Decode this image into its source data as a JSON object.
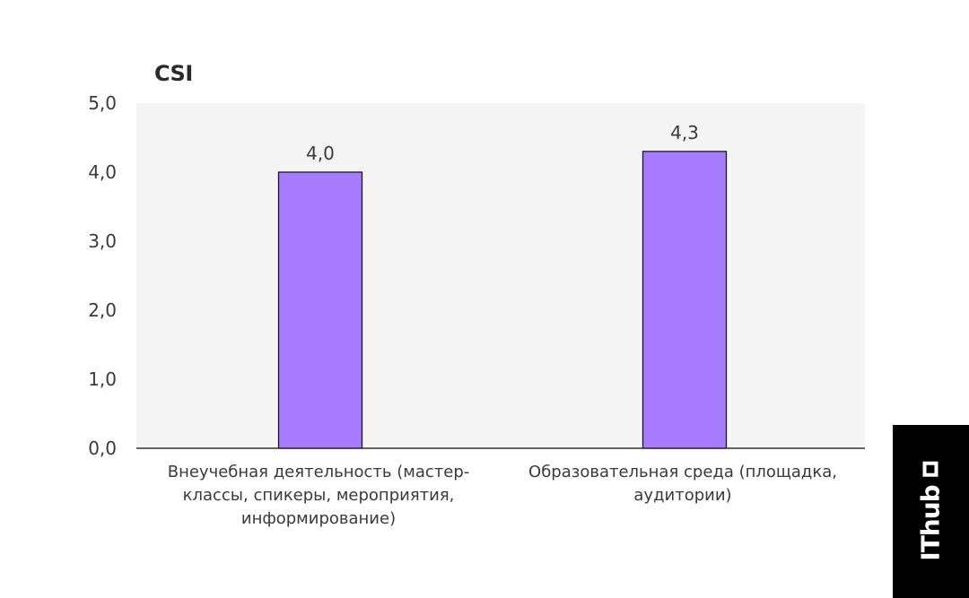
{
  "chart_data": {
    "type": "bar",
    "title": "CSI",
    "categories": [
      "Внеучебная деятельность (мастер-классы, спикеры, мероприятия, информирование)",
      "Образовательная среда (площадка, аудитории)"
    ],
    "category_lines": [
      [
        "Внеучебная деятельность (мастер-",
        "классы, спикеры, мероприятия,",
        "информирование)"
      ],
      [
        "Образовательная среда (площадка,",
        "аудитории)"
      ]
    ],
    "values": [
      4.0,
      4.3
    ],
    "value_labels": [
      "4,0",
      "4,3"
    ],
    "ylim": [
      0,
      5
    ],
    "yticks": [
      {
        "value": 0,
        "label": "0,0"
      },
      {
        "value": 1,
        "label": "1,0"
      },
      {
        "value": 2,
        "label": "2,0"
      },
      {
        "value": 3,
        "label": "3,0"
      },
      {
        "value": 4,
        "label": "4,0"
      },
      {
        "value": 5,
        "label": "5,0"
      }
    ],
    "grid": false,
    "colors": {
      "bar": "#a77bff",
      "bar_stroke": "#1a1a1a",
      "plot_background": "#f4f4f4",
      "axis": "#333333"
    }
  },
  "logo": {
    "text": "IThub",
    "icon": "square-outline-icon",
    "background": "#000000",
    "color": "#ffffff"
  }
}
